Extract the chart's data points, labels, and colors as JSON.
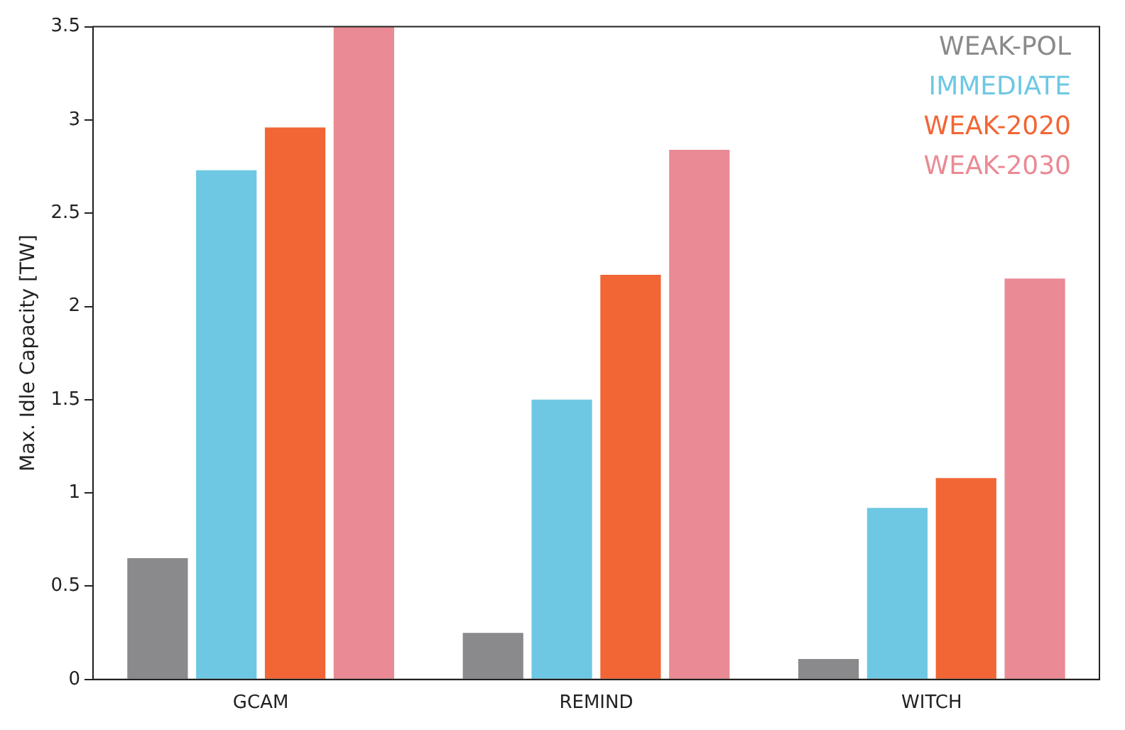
{
  "chart_data": {
    "type": "bar",
    "ylabel": "Max. Idle Capacity [TW]",
    "categories": [
      "GCAM",
      "REMIND",
      "WITCH"
    ],
    "series": [
      {
        "name": "WEAK-POL",
        "color": "#8a8a8c",
        "values": [
          0.65,
          0.25,
          0.11
        ]
      },
      {
        "name": "IMMEDIATE",
        "color": "#6ec8e4",
        "values": [
          2.73,
          1.5,
          0.92
        ]
      },
      {
        "name": "WEAK-2020",
        "color": "#f26535",
        "values": [
          2.96,
          2.17,
          1.08
        ]
      },
      {
        "name": "WEAK-2030",
        "color": "#ea8a94",
        "values": [
          3.5,
          2.84,
          2.15
        ]
      }
    ],
    "ylim": [
      0,
      3.5
    ],
    "yticks": [
      0,
      0.5,
      1,
      1.5,
      2,
      2.5,
      3,
      3.5
    ],
    "grid": false,
    "legend": "top right"
  }
}
